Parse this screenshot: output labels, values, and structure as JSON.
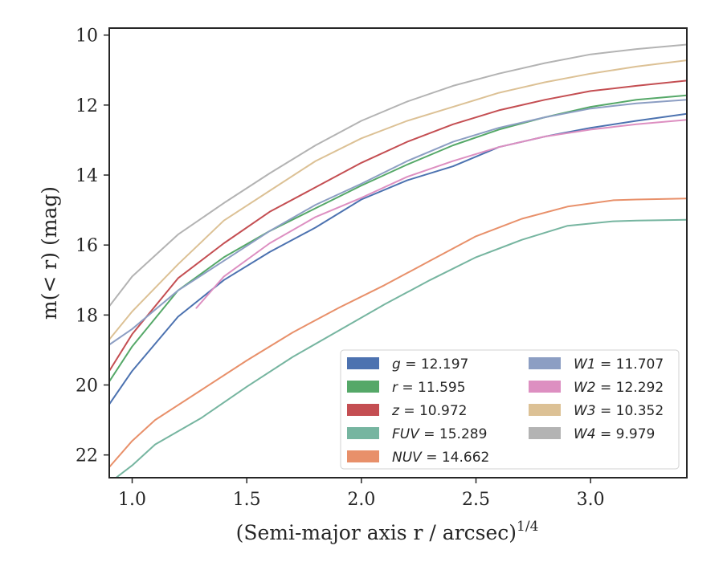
{
  "chart_data": {
    "type": "line",
    "xlabel": "(Semi-major axis r / arcsec)",
    "xlabel_exponent": "1/4",
    "ylabel": "m(< r) (mag)",
    "xlim": [
      0.9,
      3.42
    ],
    "ylim": [
      22.65,
      9.8
    ],
    "y_inverted": true,
    "grid": false,
    "legend_position": "lower-right",
    "x_ticks": [
      "1.0",
      "1.5",
      "2.0",
      "2.5",
      "3.0"
    ],
    "y_ticks": [
      "10",
      "12",
      "14",
      "16",
      "18",
      "20",
      "22"
    ],
    "series": [
      {
        "name": "g = 12.197",
        "band": "g",
        "value": "12.197",
        "color": "#4c72b0",
        "x": [
          0.9,
          1.0,
          1.2,
          1.4,
          1.6,
          1.8,
          2.0,
          2.2,
          2.4,
          2.6,
          2.8,
          3.0,
          3.2,
          3.42
        ],
        "y": [
          20.55,
          19.6,
          18.05,
          17.0,
          16.2,
          15.5,
          14.7,
          14.15,
          13.75,
          13.2,
          12.9,
          12.65,
          12.45,
          12.25
        ]
      },
      {
        "name": "r = 11.595",
        "band": "r",
        "value": "11.595",
        "color": "#55a868",
        "x": [
          0.9,
          1.0,
          1.2,
          1.4,
          1.6,
          1.8,
          2.0,
          2.2,
          2.4,
          2.6,
          2.8,
          3.0,
          3.2,
          3.42
        ],
        "y": [
          19.9,
          18.9,
          17.3,
          16.35,
          15.6,
          14.95,
          14.3,
          13.7,
          13.15,
          12.7,
          12.35,
          12.05,
          11.85,
          11.72
        ]
      },
      {
        "name": "z = 10.972",
        "band": "z",
        "value": "10.972",
        "color": "#c44e52",
        "x": [
          0.9,
          1.0,
          1.2,
          1.4,
          1.6,
          1.8,
          2.0,
          2.2,
          2.4,
          2.6,
          2.8,
          3.0,
          3.2,
          3.42
        ],
        "y": [
          19.6,
          18.55,
          16.95,
          15.95,
          15.05,
          14.35,
          13.65,
          13.05,
          12.55,
          12.15,
          11.85,
          11.6,
          11.45,
          11.3
        ]
      },
      {
        "name": "FUV = 15.289",
        "band": "FUV",
        "value": "15.289",
        "color": "#76b5a0",
        "x": [
          0.9,
          1.0,
          1.1,
          1.3,
          1.5,
          1.7,
          1.9,
          2.1,
          2.3,
          2.5,
          2.7,
          2.9,
          3.1,
          3.2,
          3.42
        ],
        "y": [
          22.8,
          22.3,
          21.7,
          20.95,
          20.05,
          19.2,
          18.45,
          17.7,
          17.0,
          16.35,
          15.85,
          15.45,
          15.32,
          15.3,
          15.28
        ]
      },
      {
        "name": "NUV = 14.662",
        "band": "NUV",
        "value": "14.662",
        "color": "#e8906a",
        "x": [
          0.9,
          1.0,
          1.1,
          1.3,
          1.5,
          1.7,
          1.9,
          2.1,
          2.3,
          2.5,
          2.7,
          2.9,
          3.1,
          3.2,
          3.42
        ],
        "y": [
          22.35,
          21.6,
          21.0,
          20.15,
          19.3,
          18.5,
          17.8,
          17.15,
          16.45,
          15.75,
          15.25,
          14.9,
          14.72,
          14.7,
          14.67
        ]
      },
      {
        "name": "W1 = 11.707",
        "band": "W1",
        "value": "11.707",
        "color": "#8c9ec3",
        "x": [
          0.9,
          1.0,
          1.2,
          1.4,
          1.6,
          1.8,
          2.0,
          2.2,
          2.4,
          2.6,
          2.8,
          3.0,
          3.2,
          3.42
        ],
        "y": [
          18.85,
          18.4,
          17.3,
          16.45,
          15.6,
          14.85,
          14.25,
          13.6,
          13.05,
          12.65,
          12.35,
          12.1,
          11.95,
          11.85
        ]
      },
      {
        "name": "W2 = 12.292",
        "band": "W2",
        "value": "12.292",
        "color": "#dd8fc1",
        "x": [
          1.28,
          1.4,
          1.6,
          1.8,
          2.0,
          2.2,
          2.4,
          2.6,
          2.8,
          3.0,
          3.2,
          3.42
        ],
        "y": [
          17.8,
          16.9,
          15.95,
          15.2,
          14.65,
          14.05,
          13.6,
          13.2,
          12.9,
          12.7,
          12.55,
          12.42
        ]
      },
      {
        "name": "W3 = 10.352",
        "band": "W3",
        "value": "10.352",
        "color": "#dcc195",
        "x": [
          0.9,
          1.0,
          1.2,
          1.4,
          1.6,
          1.8,
          2.0,
          2.2,
          2.4,
          2.6,
          2.8,
          3.0,
          3.2,
          3.42
        ],
        "y": [
          18.7,
          17.9,
          16.55,
          15.3,
          14.45,
          13.6,
          12.95,
          12.45,
          12.05,
          11.65,
          11.35,
          11.1,
          10.9,
          10.72
        ]
      },
      {
        "name": "W4 = 9.979",
        "band": "W4",
        "value": "9.979",
        "color": "#b3b3b3",
        "x": [
          0.9,
          1.0,
          1.2,
          1.4,
          1.6,
          1.8,
          2.0,
          2.2,
          2.4,
          2.6,
          2.8,
          3.0,
          3.2,
          3.42
        ],
        "y": [
          17.75,
          16.9,
          15.7,
          14.8,
          13.95,
          13.15,
          12.45,
          11.9,
          11.45,
          11.1,
          10.8,
          10.55,
          10.4,
          10.27
        ]
      }
    ]
  }
}
